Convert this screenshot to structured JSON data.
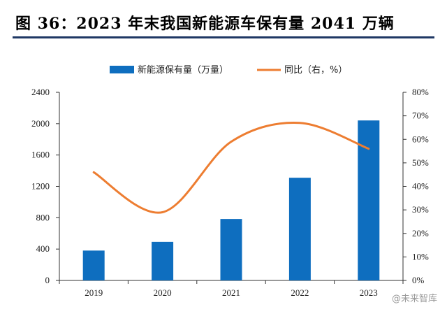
{
  "figure_title": "图 36：2023 年末我国新能源车保有量 2041 万辆",
  "watermark": "@未来智库",
  "colors": {
    "bar": "#0e6ebf",
    "line": "#ed7d31",
    "title_rule": "#1f3864"
  },
  "chart_data": {
    "type": "bar",
    "categories": [
      "2019",
      "2020",
      "2021",
      "2022",
      "2023"
    ],
    "series": [
      {
        "name": "新能源保有量（万量）",
        "type": "bar",
        "axis": "left",
        "values": [
          381,
          492,
          784,
          1310,
          2041
        ]
      },
      {
        "name": "同比（右，%）",
        "type": "line",
        "axis": "right",
        "values": [
          46,
          29,
          59,
          67,
          56
        ]
      }
    ],
    "y_left": {
      "ticks": [
        "0",
        "400",
        "800",
        "1200",
        "1600",
        "2000",
        "2400"
      ],
      "ylim": [
        0,
        2400
      ]
    },
    "y_right": {
      "ticks": [
        "0%",
        "10%",
        "20%",
        "30%",
        "40%",
        "50%",
        "60%",
        "70%",
        "80%"
      ],
      "ylim": [
        0,
        80
      ]
    },
    "grid": false,
    "legend_position": "top"
  }
}
